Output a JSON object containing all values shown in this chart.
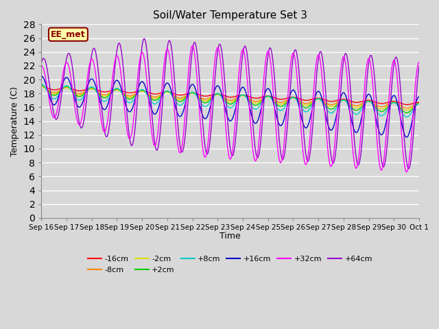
{
  "title": "Soil/Water Temperature Set 3",
  "xlabel": "Time",
  "ylabel": "Temperature (C)",
  "ylim": [
    0,
    28
  ],
  "bg_color": "#d8d8d8",
  "plot_bg_color": "#d8d8d8",
  "annotation_text": "EE_met",
  "annotation_bg": "#ffffaa",
  "annotation_border": "#8B0000",
  "annotation_text_color": "#8B0000",
  "series_colors": {
    "-16cm": "#ff0000",
    "-8cm": "#ff8800",
    "-2cm": "#dddd00",
    "+2cm": "#00cc00",
    "+8cm": "#00cccc",
    "+16cm": "#0000cc",
    "+32cm": "#ff00ff",
    "+64cm": "#9900cc"
  },
  "tick_labels": [
    "Sep 16",
    "Sep 17",
    "Sep 18",
    "Sep 19",
    "Sep 20",
    "Sep 21",
    "Sep 22",
    "Sep 23",
    "Sep 24",
    "Sep 25",
    "Sep 26",
    "Sep 27",
    "Sep 28",
    "Sep 29",
    "Sep 30",
    "Oct 1"
  ],
  "legend_labels": [
    "-16cm",
    "-8cm",
    "-2cm",
    "+2cm",
    "+8cm",
    "+16cm",
    "+32cm",
    "+64cm"
  ]
}
